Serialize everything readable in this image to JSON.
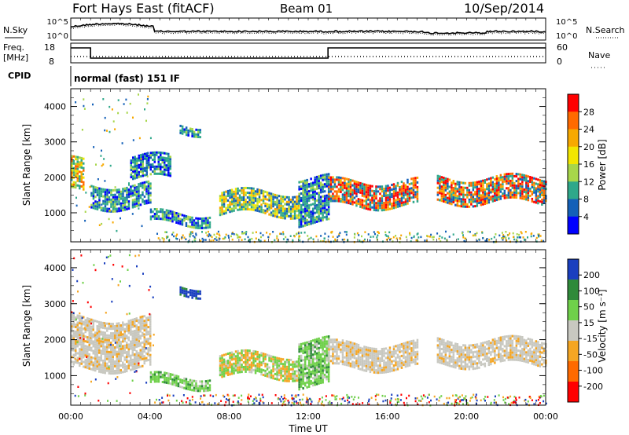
{
  "header": {
    "station": "Fort Hays East (fitACF)",
    "beam": "Beam 01",
    "date": "10/Sep/2014"
  },
  "top_panel": {
    "left_label": "N.Sky",
    "right_label": "N.Search",
    "left_ticks": [
      "10^5",
      "10^0"
    ],
    "right_ticks": [
      "10^5",
      "10^0"
    ]
  },
  "freq_panel": {
    "left_label_line1": "Freq.",
    "left_label_line2": "[MHz]",
    "right_label": "Nave",
    "left_ticks": [
      "18",
      "8"
    ],
    "right_ticks": [
      "60",
      "0"
    ],
    "cpid_label": "CPID",
    "cpid_text": "normal (fast) 151 IF"
  },
  "chart_data": [
    {
      "type": "heatmap",
      "name": "Power",
      "ylabel": "Slant Range [km]",
      "yticks": [
        "4000",
        "3000",
        "2000",
        "1000"
      ],
      "ylim": [
        180,
        4500
      ],
      "xlim": [
        0,
        24
      ],
      "colorbar_label": "Power [dB]",
      "colorbar_ticks": [
        "28",
        "24",
        "20",
        "16",
        "12",
        "8",
        "4"
      ],
      "colorbar_colors": [
        "#ff0000",
        "#ff6a00",
        "#f7a900",
        "#f2e600",
        "#a7d64a",
        "#2fa88a",
        "#1460b8",
        "#0000ff"
      ],
      "regions": [
        {
          "t": [
            0.0,
            0.6
          ],
          "r": [
            1600,
            2500
          ],
          "level": "mixed"
        },
        {
          "t": [
            1.0,
            4.0
          ],
          "r": [
            1200,
            1800
          ],
          "level": "medium"
        },
        {
          "t": [
            3.0,
            5.0
          ],
          "r": [
            2000,
            2600
          ],
          "level": "medium"
        },
        {
          "t": [
            4.0,
            7.0
          ],
          "r": [
            700,
            1000
          ],
          "level": "medium"
        },
        {
          "t": [
            5.5,
            6.5
          ],
          "r": [
            3300,
            3500
          ],
          "level": "medium"
        },
        {
          "t": [
            7.5,
            11.5
          ],
          "r": [
            1000,
            1600
          ],
          "level": "medium-high"
        },
        {
          "t": [
            11.5,
            13.0
          ],
          "r": [
            700,
            2000
          ],
          "level": "medium"
        },
        {
          "t": [
            13.0,
            17.5
          ],
          "r": [
            1200,
            1900
          ],
          "level": "high"
        },
        {
          "t": [
            18.5,
            24.0
          ],
          "r": [
            1300,
            2000
          ],
          "level": "high"
        }
      ]
    },
    {
      "type": "heatmap",
      "name": "Velocity",
      "ylabel": "Slant Range [km]",
      "yticks": [
        "4000",
        "3000",
        "2000",
        "1000"
      ],
      "ylim": [
        180,
        4500
      ],
      "xlim": [
        0,
        24
      ],
      "xlabel": "Time UT",
      "xticks": [
        "00:00",
        "04:00",
        "08:00",
        "12:00",
        "16:00",
        "20:00",
        "00:00"
      ],
      "xtick_values": [
        0,
        4,
        8,
        12,
        16,
        20,
        24
      ],
      "colorbar_label": "Velocity [m s⁻¹]",
      "colorbar_ticks": [
        "200",
        "100",
        "50",
        "15",
        "-15",
        "-50",
        "-100",
        "-200"
      ],
      "colorbar_colors": [
        "#1a3fbf",
        "#2f8a3a",
        "#6fd04a",
        "#c8c8c0",
        "#f5a623",
        "#ff6a00",
        "#ff0000"
      ],
      "regions": [
        {
          "t": [
            0.0,
            4.0
          ],
          "r": [
            1200,
            2600
          ],
          "level": "ground"
        },
        {
          "t": [
            4.0,
            7.0
          ],
          "r": [
            700,
            1000
          ],
          "level": "positive"
        },
        {
          "t": [
            5.5,
            6.5
          ],
          "r": [
            3300,
            3500
          ],
          "level": "strong-positive"
        },
        {
          "t": [
            7.5,
            11.5
          ],
          "r": [
            1000,
            1600
          ],
          "level": "mixed"
        },
        {
          "t": [
            11.5,
            13.0
          ],
          "r": [
            700,
            2000
          ],
          "level": "positive"
        },
        {
          "t": [
            13.0,
            17.5
          ],
          "r": [
            1200,
            1900
          ],
          "level": "ground"
        },
        {
          "t": [
            18.5,
            24.0
          ],
          "r": [
            1300,
            2000
          ],
          "level": "ground"
        }
      ]
    }
  ]
}
